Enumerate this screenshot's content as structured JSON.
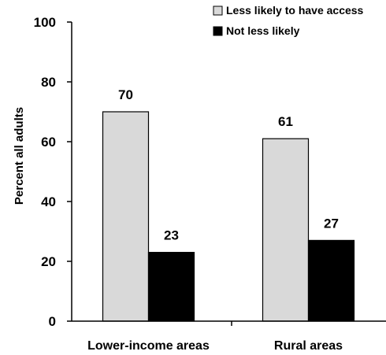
{
  "chart_data": {
    "type": "bar",
    "categories": [
      "Lower-income areas",
      "Rural areas"
    ],
    "series": [
      {
        "name": "Less likely to have access",
        "values": [
          70,
          61
        ],
        "color": "#d9d9d9"
      },
      {
        "name": "Not less likely",
        "values": [
          23,
          27
        ],
        "color": "#000000"
      }
    ],
    "ylabel": "Percent all adults",
    "ylim": [
      0,
      100
    ],
    "yticks": [
      0,
      20,
      40,
      60,
      80,
      100
    ],
    "grid": false,
    "legend_position": "top-right"
  }
}
